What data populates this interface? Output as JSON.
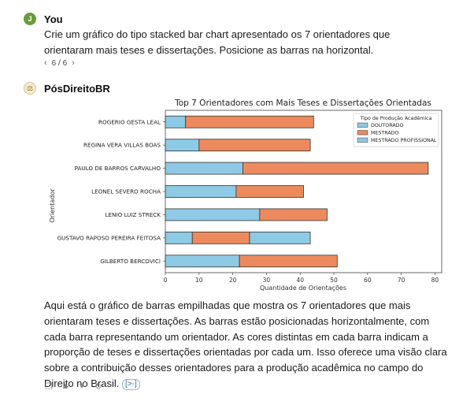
{
  "user": {
    "avatar_letter": "J",
    "name": "You",
    "message": "Crie um gráfico do tipo stacked bar chart apresentado os 7 orientadores que orientaram mais teses e dissertações. Posicione as barras na horizontal.",
    "pager": "6 / 6"
  },
  "assistant": {
    "name": "PósDireitoBR",
    "answer": "Aqui está o gráfico de barras empilhadas que mostra os 7 orientadores que mais orientaram teses e dissertações. As barras estão posicionadas horizontalmente, com cada barra representando um orientador. As cores distintas em cada barra indicam a proporção de teses e dissertações orientadas por cada um. Isso oferece uma visão clara sobre a contribuição desses orientadores para a produção acadêmica no campo do Direito no Brasil.",
    "cite_label": "[>-]"
  },
  "icons": [
    "copy-icon",
    "thumbs-up-icon",
    "thumbs-down-icon",
    "regenerate-icon"
  ],
  "colors": {
    "series1": "#8ecae6",
    "series2": "#ec8a5e",
    "user_avatar": "#6b9a3b"
  },
  "chart_data": {
    "type": "bar",
    "orientation": "horizontal",
    "stacked": true,
    "title": "Top 7 Orientadores com Mais Teses e Dissertações Orientadas",
    "xlabel": "Quantidade de Orientações",
    "ylabel": "Orientador",
    "xlim": [
      0,
      82
    ],
    "xticks": [
      0,
      10,
      20,
      30,
      40,
      50,
      60,
      70,
      80
    ],
    "legend_title": "Tipo de Produção Acadêmica",
    "legend_position": "top-right",
    "categories": [
      "ROGERIO GESTA LEAL",
      "REGINA VERA VILLAS BOAS",
      "PAULO DE BARROS CARVALHO",
      "LEONEL SEVERO ROCHA",
      "LENIO LUIZ STRECK",
      "GUSTAVO RAPOSO PEREIRA FEITOSA",
      "GILBERTO BERCOVICI"
    ],
    "series": [
      {
        "name": "DOUTORADO",
        "color": "#8ecae6",
        "values": [
          6,
          10,
          23,
          21,
          28,
          8,
          22
        ]
      },
      {
        "name": "MESTRADO",
        "color": "#ec8a5e",
        "values": [
          38,
          33,
          55,
          20,
          20,
          17,
          29
        ]
      },
      {
        "name": "MESTRADO PROFISSIONAL",
        "color": "#8ecae6",
        "values": [
          0,
          0,
          0,
          0,
          0,
          18,
          0
        ]
      }
    ]
  }
}
